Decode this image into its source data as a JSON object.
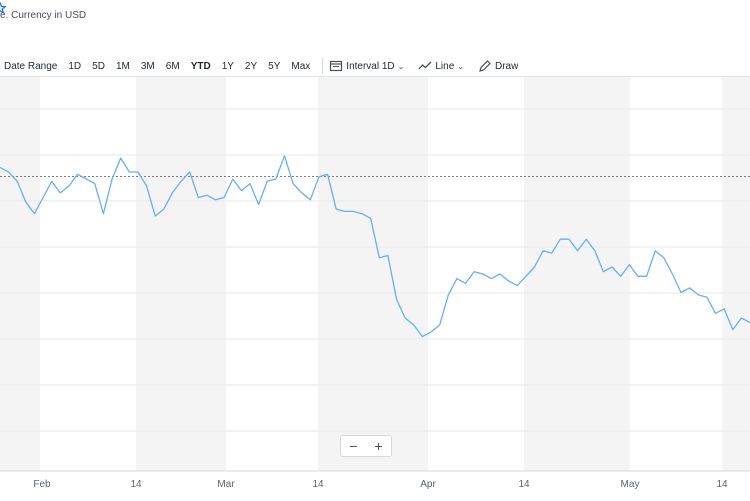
{
  "header": {
    "currency_note": "e. Currency in USD",
    "star_icon": "star-outline-icon"
  },
  "toolbar": {
    "date_range": "Date Range",
    "ranges": [
      "1D",
      "5D",
      "1M",
      "3M",
      "6M",
      "YTD",
      "1Y",
      "2Y",
      "5Y",
      "Max"
    ],
    "active_range": "YTD",
    "interval": "Interval",
    "interval_value": "1D",
    "line": "Line",
    "draw": "Draw",
    "accent_color": "#0f69ff"
  },
  "zoom": {
    "minus": "−",
    "plus": "+"
  },
  "chart_data": {
    "type": "line",
    "title": "",
    "xlabel": "",
    "ylabel": "",
    "x_tick_labels": [
      "Feb",
      "14",
      "Mar",
      "14",
      "Apr",
      "14",
      "May",
      "14"
    ],
    "line_color": "#6aaef2",
    "reference_line": {
      "style": "dotted",
      "value": 97.7
    },
    "grid": true,
    "ylim": [
      85,
      102
    ],
    "series": [
      {
        "values": [
          98.1,
          97.9,
          97.5,
          96.6,
          96.1,
          96.8,
          97.5,
          97.0,
          97.3,
          97.8,
          97.6,
          97.4,
          96.1,
          97.6,
          98.5,
          97.9,
          97.9,
          97.3,
          96.0,
          96.3,
          97.0,
          97.5,
          97.9,
          96.8,
          96.9,
          96.7,
          96.8,
          97.6,
          97.1,
          97.4,
          96.5,
          97.5,
          97.6,
          98.6,
          97.4,
          97.0,
          96.7,
          97.7,
          97.8,
          96.3,
          96.2,
          96.2,
          96.1,
          95.9,
          94.2,
          94.3,
          92.4,
          91.6,
          91.3,
          90.8,
          91.0,
          91.3,
          92.6,
          93.3,
          93.1,
          93.6,
          93.5,
          93.3,
          93.5,
          93.2,
          93.0,
          93.4,
          93.8,
          94.5,
          94.4,
          95.0,
          95.0,
          94.5,
          95.0,
          94.5,
          93.6,
          93.8,
          93.4,
          93.9,
          93.4,
          93.4,
          94.5,
          94.2,
          93.5,
          92.7,
          92.9,
          92.6,
          92.5,
          91.8,
          92.0,
          91.1,
          91.6,
          91.4
        ]
      }
    ]
  }
}
